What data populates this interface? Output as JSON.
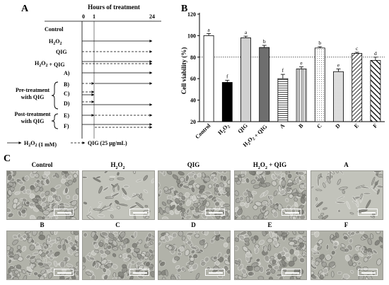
{
  "panelA": {
    "letter": "A",
    "time_title": "Hours of treatment",
    "ticks": [
      "0",
      "1",
      "24"
    ],
    "rows": [
      "Control",
      "H2O2",
      "QIG",
      "H2O2 + QIG",
      "A)",
      "B)",
      "C)",
      "D)",
      "E)",
      "F)"
    ],
    "groups": [
      {
        "line1": "Pre-treatment",
        "line2": "with QIG"
      },
      {
        "line1": "Post-treatment",
        "line2": "with QIG"
      }
    ],
    "legend": {
      "solid": "H2O2 (1 mM)",
      "dashed": "QIG (25 μg/mL)"
    }
  },
  "panelB": {
    "letter": "B",
    "chart_data": {
      "type": "bar",
      "categories": [
        "Control",
        "H2O2",
        "QIG",
        "H2O2 + QIG",
        "A",
        "B",
        "C",
        "D",
        "E",
        "F"
      ],
      "values": [
        100,
        56.5,
        98,
        89,
        60,
        69,
        88.5,
        66.5,
        83.5,
        77
      ],
      "errors": [
        2,
        2,
        1.5,
        2,
        4,
        2,
        1.2,
        2.5,
        1,
        3
      ],
      "letters": [
        "a",
        "f",
        "a",
        "b",
        "f",
        "e",
        "b",
        "e",
        "c",
        "d"
      ],
      "fills": [
        "white",
        "black",
        "lightgray",
        "darkgray",
        "hlines",
        "vlines",
        "dots",
        "dense-dots",
        "diagonal",
        "bold-diagonal"
      ],
      "ylabel": "Cell viability (%)",
      "yticks": [
        "20",
        "40",
        "60",
        "80",
        "100",
        "120"
      ],
      "ylim": [
        20,
        120
      ],
      "reference_line": 80
    }
  },
  "panelC": {
    "letter": "C",
    "images": [
      {
        "label": "Control",
        "texture": "dense"
      },
      {
        "label": "H2O2",
        "texture": "sparse"
      },
      {
        "label": "QIG",
        "texture": "dense"
      },
      {
        "label": "H2O2 + QIG",
        "texture": "dense"
      },
      {
        "label": "A",
        "texture": "sparse"
      },
      {
        "label": "B",
        "texture": "dense"
      },
      {
        "label": "C",
        "texture": "dense"
      },
      {
        "label": "D",
        "texture": "medium"
      },
      {
        "label": "E",
        "texture": "dense"
      },
      {
        "label": "F",
        "texture": "medium"
      }
    ]
  }
}
